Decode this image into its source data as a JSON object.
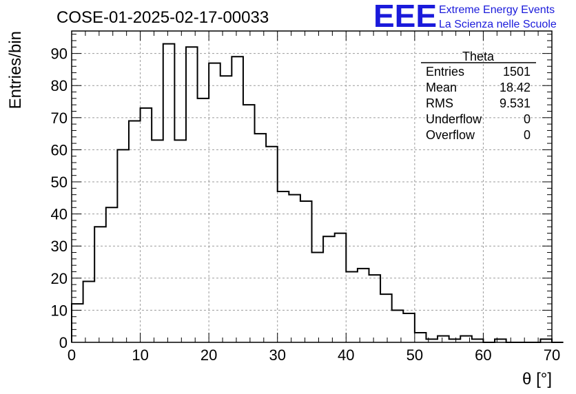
{
  "header": {
    "run_title": "COSE-01-2025-02-17-00033",
    "logo_mark": "EEE",
    "logo_line1": "Extreme Energy Events",
    "logo_line2": "La Scienza nelle Scuole",
    "logo_color": "#1a1adb"
  },
  "stats": {
    "name": "Theta",
    "rows": [
      {
        "label": "Entries",
        "value": "1501"
      },
      {
        "label": "Mean",
        "value": "18.42"
      },
      {
        "label": "RMS",
        "value": "9.531"
      },
      {
        "label": "Underflow",
        "value": "0"
      },
      {
        "label": "Overflow",
        "value": "0"
      }
    ]
  },
  "chart_data": {
    "type": "bar",
    "subtype": "step-histogram",
    "title": "COSE-01-2025-02-17-00033",
    "xlabel": "θ [°]",
    "ylabel": "Entries/bin",
    "xlim": [
      0,
      70
    ],
    "ylim": [
      0,
      97
    ],
    "bin_width": 1.6667,
    "x_ticks": [
      0,
      10,
      20,
      30,
      40,
      50,
      60,
      70
    ],
    "y_ticks": [
      0,
      10,
      20,
      30,
      40,
      50,
      60,
      70,
      80,
      90
    ],
    "grid": true,
    "values": [
      12,
      19,
      36,
      42,
      60,
      69,
      73,
      63,
      93,
      63,
      92,
      76,
      87,
      83,
      89,
      74,
      65,
      61,
      47,
      46,
      44,
      28,
      33,
      34,
      22,
      23,
      21,
      15,
      10,
      9,
      3,
      1,
      2,
      1,
      2,
      1,
      0,
      1,
      0,
      0,
      0,
      1,
      0
    ]
  }
}
